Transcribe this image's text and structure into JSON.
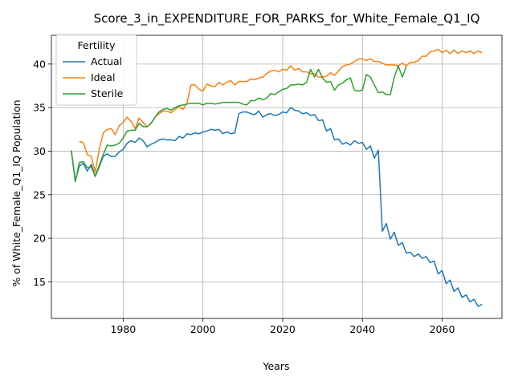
{
  "chart_data": {
    "type": "line",
    "title": "Score_3_in_EXPENDITURE_FOR_PARKS_for_White_Female_Q1_IQ",
    "xlabel": "Years",
    "ylabel": "% of White_Female_Q1_IQ Population",
    "xlim": [
      1962,
      2075
    ],
    "ylim": [
      10.8,
      43.3
    ],
    "xticks": [
      1980,
      2000,
      2020,
      2040,
      2060
    ],
    "yticks": [
      15,
      20,
      25,
      30,
      35,
      40
    ],
    "grid": true,
    "legend": {
      "title": "Fertility",
      "position": "top-left"
    },
    "series": [
      {
        "name": "Actual",
        "color": "#1f77b4",
        "x": [
          1967,
          1968,
          1969,
          1970,
          1971,
          1972,
          1973,
          1974,
          1975,
          1976,
          1977,
          1978,
          1979,
          1980,
          1981,
          1982,
          1983,
          1984,
          1985,
          1986,
          1987,
          1988,
          1989,
          1990,
          1991,
          1992,
          1993,
          1994,
          1995,
          1996,
          1997,
          1998,
          1999,
          2000,
          2001,
          2002,
          2003,
          2004,
          2005,
          2006,
          2007,
          2008,
          2009,
          2010,
          2011,
          2012,
          2013,
          2014,
          2015,
          2016,
          2017,
          2018,
          2019,
          2020,
          2021,
          2022,
          2023,
          2024,
          2025,
          2026,
          2027,
          2028,
          2029,
          2030,
          2031,
          2032,
          2033,
          2034,
          2035,
          2036,
          2037,
          2038,
          2039,
          2040,
          2041,
          2042,
          2043,
          2044,
          2045,
          2046,
          2047,
          2048,
          2049,
          2050,
          2051,
          2052,
          2053,
          2054,
          2055,
          2056,
          2057,
          2058,
          2059,
          2060,
          2061,
          2062,
          2063,
          2064,
          2065,
          2066,
          2067,
          2068,
          2069,
          2070
        ],
        "values": [
          30.0,
          26.6,
          28.3,
          28.6,
          27.7,
          28.5,
          27.1,
          28.2,
          29.4,
          29.7,
          29.4,
          29.4,
          29.9,
          30.2,
          30.9,
          31.2,
          31.0,
          31.5,
          31.2,
          30.5,
          30.8,
          31.0,
          31.3,
          31.4,
          31.3,
          31.3,
          31.2,
          31.7,
          31.5,
          32.0,
          31.9,
          32.1,
          32.0,
          32.2,
          32.3,
          32.5,
          32.4,
          32.5,
          32.0,
          32.2,
          32.0,
          32.1,
          34.3,
          34.5,
          34.5,
          34.3,
          34.2,
          34.6,
          33.9,
          34.2,
          34.3,
          34.1,
          34.2,
          34.5,
          34.4,
          35.0,
          34.7,
          34.6,
          34.3,
          34.4,
          34.1,
          34.2,
          33.5,
          33.6,
          32.3,
          32.6,
          31.3,
          31.4,
          30.8,
          31.0,
          30.7,
          31.2,
          30.9,
          31.0,
          30.2,
          30.6,
          29.2,
          30.1,
          20.8,
          21.7,
          19.9,
          20.7,
          19.2,
          19.5,
          18.3,
          18.4,
          17.9,
          18.2,
          17.7,
          17.9,
          17.2,
          17.4,
          15.9,
          16.3,
          14.8,
          15.2,
          13.9,
          14.3,
          13.2,
          13.5,
          12.7,
          13.0,
          12.2,
          12.4
        ]
      },
      {
        "name": "Ideal",
        "color": "#ff7f0e",
        "x": [
          1969,
          1970,
          1971,
          1972,
          1973,
          1974,
          1975,
          1976,
          1977,
          1978,
          1979,
          1980,
          1981,
          1982,
          1983,
          1984,
          1985,
          1986,
          1987,
          1988,
          1989,
          1990,
          1991,
          1992,
          1993,
          1994,
          1995,
          1996,
          1997,
          1998,
          1999,
          2000,
          2001,
          2002,
          2003,
          2004,
          2005,
          2006,
          2007,
          2008,
          2009,
          2010,
          2011,
          2012,
          2013,
          2014,
          2015,
          2016,
          2017,
          2018,
          2019,
          2020,
          2021,
          2022,
          2023,
          2024,
          2025,
          2026,
          2027,
          2028,
          2029,
          2030,
          2031,
          2032,
          2033,
          2034,
          2035,
          2036,
          2037,
          2038,
          2039,
          2040,
          2041,
          2042,
          2043,
          2044,
          2045,
          2046,
          2047,
          2048,
          2049,
          2050,
          2051,
          2052,
          2053,
          2054,
          2055,
          2056,
          2057,
          2058,
          2059,
          2060,
          2061,
          2062,
          2063,
          2064,
          2065,
          2066,
          2067,
          2068,
          2069,
          2070
        ],
        "values": [
          31.1,
          31.0,
          29.6,
          29.4,
          27.6,
          30.2,
          32.1,
          32.5,
          32.6,
          31.9,
          32.9,
          33.3,
          33.9,
          33.4,
          32.6,
          33.8,
          33.3,
          32.8,
          33.2,
          33.9,
          34.3,
          34.6,
          34.6,
          34.4,
          34.8,
          35.1,
          34.8,
          35.5,
          37.6,
          37.6,
          37.1,
          36.9,
          37.7,
          37.5,
          37.4,
          37.9,
          37.6,
          37.9,
          38.1,
          37.6,
          38.0,
          38.0,
          38.0,
          38.3,
          38.2,
          38.4,
          38.5,
          38.9,
          39.2,
          39.3,
          39.1,
          39.4,
          39.3,
          39.8,
          39.3,
          39.5,
          39.1,
          39.1,
          38.9,
          38.9,
          38.5,
          38.5,
          38.6,
          39.0,
          38.7,
          39.2,
          39.7,
          39.9,
          40.0,
          40.3,
          40.6,
          40.6,
          40.4,
          40.6,
          40.3,
          40.3,
          40.1,
          39.9,
          39.9,
          39.9,
          39.8,
          40.1,
          39.8,
          40.2,
          40.2,
          40.4,
          40.9,
          40.9,
          41.4,
          41.5,
          41.7,
          41.3,
          41.6,
          41.2,
          41.6,
          41.2,
          41.5,
          41.3,
          41.5,
          41.2,
          41.5,
          41.3
        ]
      },
      {
        "name": "Sterile",
        "color": "#2ca02c",
        "x": [
          1967,
          1968,
          1969,
          1970,
          1971,
          1972,
          1973,
          1974,
          1975,
          1976,
          1977,
          1978,
          1979,
          1980,
          1981,
          1982,
          1983,
          1984,
          1985,
          1986,
          1987,
          1988,
          1989,
          1990,
          1991,
          1992,
          1993,
          1994,
          1995,
          1996,
          1997,
          1998,
          1999,
          2000,
          2001,
          2002,
          2003,
          2004,
          2005,
          2006,
          2007,
          2008,
          2009,
          2010,
          2011,
          2012,
          2013,
          2014,
          2015,
          2016,
          2017,
          2018,
          2019,
          2020,
          2021,
          2022,
          2023,
          2024,
          2025,
          2026,
          2027,
          2028,
          2029,
          2030,
          2031,
          2032,
          2033,
          2034,
          2035,
          2036,
          2037,
          2038,
          2039,
          2040,
          2041,
          2042,
          2043,
          2044,
          2045,
          2046,
          2047,
          2048,
          2049,
          2050,
          2051
        ],
        "values": [
          30.1,
          26.5,
          28.7,
          28.8,
          28.1,
          28.2,
          27.1,
          28.4,
          29.6,
          30.7,
          30.6,
          30.7,
          30.9,
          31.5,
          32.3,
          32.4,
          32.4,
          33.2,
          32.8,
          32.8,
          33.2,
          33.9,
          34.5,
          34.8,
          34.9,
          34.7,
          35.0,
          35.2,
          35.3,
          35.4,
          35.5,
          35.5,
          35.5,
          35.3,
          35.5,
          35.5,
          35.4,
          35.5,
          35.6,
          35.6,
          35.6,
          35.6,
          35.6,
          35.4,
          35.3,
          35.8,
          35.8,
          36.1,
          35.9,
          36.1,
          36.6,
          36.5,
          36.8,
          37.1,
          37.2,
          37.6,
          37.6,
          37.7,
          37.6,
          37.9,
          39.4,
          38.5,
          39.4,
          38.4,
          37.9,
          38.0,
          37.0,
          37.6,
          37.8,
          38.2,
          38.4,
          37.0,
          36.9,
          37.0,
          38.8,
          38.5,
          37.6,
          36.7,
          36.8,
          36.5,
          36.5,
          38.5,
          39.8,
          38.5,
          39.7
        ]
      }
    ]
  }
}
